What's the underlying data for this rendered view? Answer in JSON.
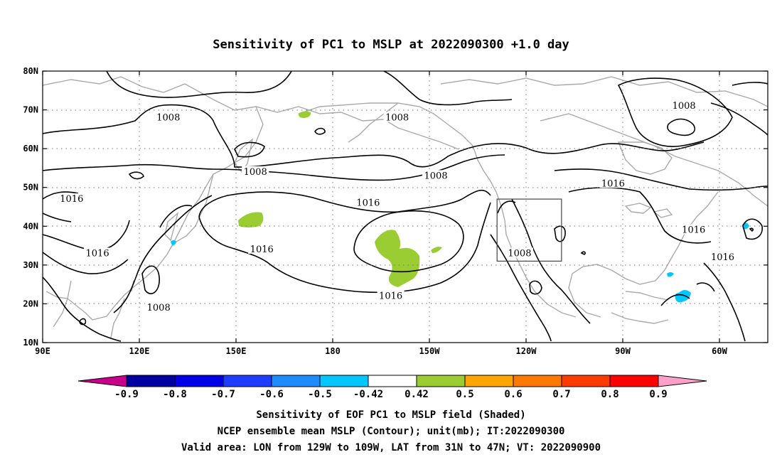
{
  "title": "Sensitivity of PC1 to MSLP at 2022090300 +1.0 day",
  "map": {
    "lon_labels": [
      "90E",
      "120E",
      "150E",
      "180",
      "150W",
      "120W",
      "90W",
      "60W"
    ],
    "lat_labels": [
      "80N",
      "70N",
      "60N",
      "50N",
      "40N",
      "30N",
      "20N",
      "10N"
    ],
    "contour_labels": [
      {
        "text": "1008",
        "lon": 129,
        "lat": 68
      },
      {
        "text": "1008",
        "lon": 156,
        "lat": 54
      },
      {
        "text": "1008",
        "lon": 212,
        "lat": 53
      },
      {
        "text": "1008",
        "lon": 200,
        "lat": 68
      },
      {
        "text": "1008",
        "lon": 289,
        "lat": 71
      },
      {
        "text": "1008",
        "lon": 238,
        "lat": 33
      },
      {
        "text": "1008",
        "lon": 126,
        "lat": 19
      },
      {
        "text": "1016",
        "lon": 99,
        "lat": 47
      },
      {
        "text": "1016",
        "lon": 107,
        "lat": 33
      },
      {
        "text": "1016",
        "lon": 158,
        "lat": 34
      },
      {
        "text": "1016",
        "lon": 191,
        "lat": 46
      },
      {
        "text": "1016",
        "lon": 198,
        "lat": 22
      },
      {
        "text": "1016",
        "lon": 267,
        "lat": 51
      },
      {
        "text": "1016",
        "lon": 292,
        "lat": 39
      },
      {
        "text": "1016",
        "lon": 301,
        "lat": 32
      }
    ],
    "valid_box": {
      "lon_west": 231,
      "lon_east": 251,
      "lat_south": 31,
      "lat_north": 47
    }
  },
  "colorbar": {
    "ticks": [
      "-0.9",
      "-0.8",
      "-0.7",
      "-0.6",
      "-0.5",
      "-0.42",
      "0.42",
      "0.5",
      "0.6",
      "0.7",
      "0.8",
      "0.9"
    ],
    "colors": [
      "#c8008c",
      "#0000a0",
      "#0000e6",
      "#1e3cff",
      "#1e8cff",
      "#00c8ff",
      "#ffffff",
      "#9acd32",
      "#ffa500",
      "#ff7800",
      "#ff3c00",
      "#ff0000",
      "#ffa0c8"
    ]
  },
  "caption": {
    "line1": "Sensitivity of EOF PC1 to MSLP field (Shaded)",
    "line2": "NCEP ensemble mean MSLP (Contour); unit(mb); IT:2022090300",
    "line3": "Valid area: LON from 129W to 109W, LAT from 31N to 47N; VT: 2022090900"
  }
}
